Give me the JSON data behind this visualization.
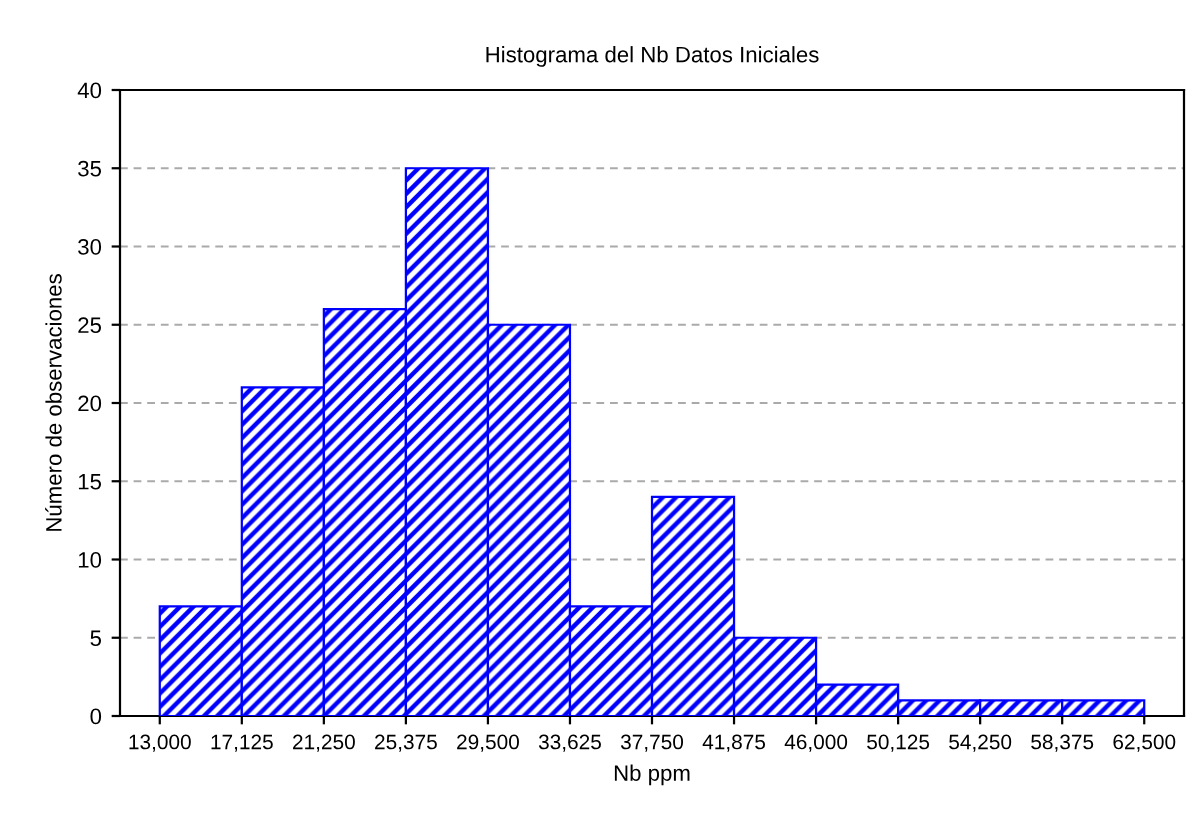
{
  "chart_data": {
    "type": "histogram",
    "title": "Histograma del Nb Datos Iniciales",
    "xlabel": "Nb ppm",
    "ylabel": "Número de observaciones",
    "bins": [
      13000,
      17125,
      21250,
      25375,
      29500,
      33625,
      37750,
      41875,
      46000,
      50125,
      54250,
      58375,
      62500
    ],
    "values": [
      7,
      21,
      26,
      35,
      25,
      7,
      14,
      5,
      2,
      1,
      1,
      1
    ],
    "color": "#0000ff",
    "xlim": [
      11000,
      64500
    ],
    "xticks": [
      {
        "value": 13000,
        "label": "13,000"
      },
      {
        "value": 17125,
        "label": "17,125"
      },
      {
        "value": 21250,
        "label": "21,250"
      },
      {
        "value": 25375,
        "label": "25,375"
      },
      {
        "value": 29500,
        "label": "29,500"
      },
      {
        "value": 33625,
        "label": "33,625"
      },
      {
        "value": 37750,
        "label": "37,750"
      },
      {
        "value": 41875,
        "label": "41,875"
      },
      {
        "value": 46000,
        "label": "46,000"
      },
      {
        "value": 50125,
        "label": "50,125"
      },
      {
        "value": 54250,
        "label": "54,250"
      },
      {
        "value": 58375,
        "label": "58,375"
      },
      {
        "value": 62500,
        "label": "62,500"
      }
    ],
    "ylim": [
      0,
      40
    ],
    "yticks": [
      0,
      5,
      10,
      15,
      20,
      25,
      30,
      35,
      40
    ],
    "grid": "y"
  }
}
